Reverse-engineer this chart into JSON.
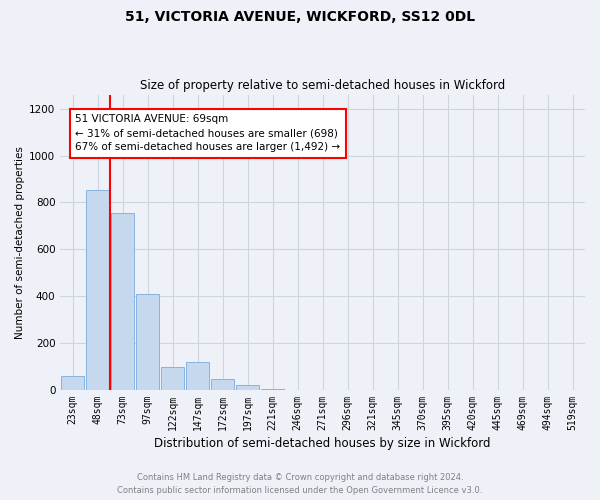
{
  "title": "51, VICTORIA AVENUE, WICKFORD, SS12 0DL",
  "subtitle": "Size of property relative to semi-detached houses in Wickford",
  "xlabel": "Distribution of semi-detached houses by size in Wickford",
  "ylabel": "Number of semi-detached properties",
  "footnote1": "Contains HM Land Registry data © Crown copyright and database right 2024.",
  "footnote2": "Contains public sector information licensed under the Open Government Licence v3.0.",
  "annotation_line1": "51 VICTORIA AVENUE: 69sqm",
  "annotation_line2": "← 31% of semi-detached houses are smaller (698)",
  "annotation_line3": "67% of semi-detached houses are larger (1,492) →",
  "property_bin_index": 2,
  "bar_color": "#c5d8ee",
  "bar_edge_color": "#7aabe0",
  "vline_color": "red",
  "annotation_box_color": "red",
  "categories": [
    "23sqm",
    "48sqm",
    "73sqm",
    "97sqm",
    "122sqm",
    "147sqm",
    "172sqm",
    "197sqm",
    "221sqm",
    "246sqm",
    "271sqm",
    "296sqm",
    "321sqm",
    "345sqm",
    "370sqm",
    "395sqm",
    "420sqm",
    "445sqm",
    "469sqm",
    "494sqm",
    "519sqm"
  ],
  "values": [
    60,
    855,
    755,
    410,
    100,
    120,
    45,
    20,
    5,
    0,
    0,
    0,
    0,
    0,
    0,
    0,
    0,
    0,
    0,
    0,
    0
  ],
  "ylim": [
    0,
    1260
  ],
  "yticks": [
    0,
    200,
    400,
    600,
    800,
    1000,
    1200
  ],
  "grid_color": "#ccd5e0",
  "bg_color": "#eef2f8",
  "fig_width": 6.0,
  "fig_height": 5.0,
  "title_fontsize": 10,
  "subtitle_fontsize": 8.5,
  "xlabel_fontsize": 8.5,
  "ylabel_fontsize": 7.5,
  "tick_fontsize": 7,
  "annot_fontsize": 7.5,
  "footnote_fontsize": 6.0
}
